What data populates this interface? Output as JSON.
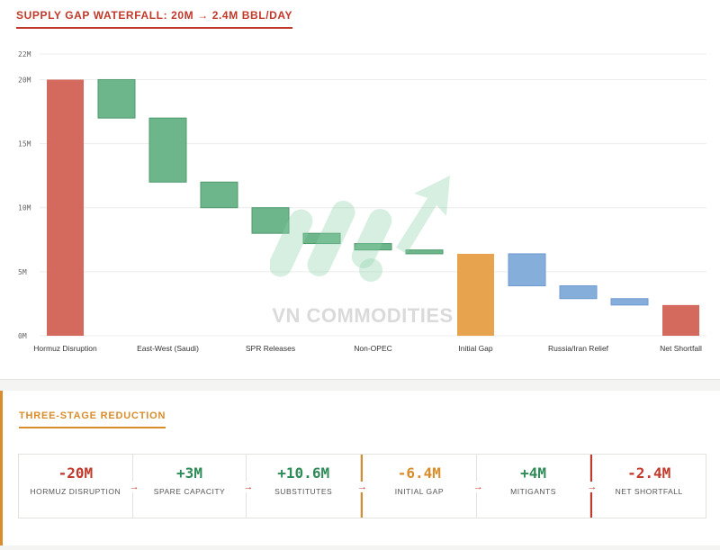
{
  "chart_title": "SUPPLY GAP WATERFALL: 20M → 2.4M BBL/DAY",
  "watermark": "VN COMMODITIES",
  "colors": {
    "red": "#c0392b",
    "red_bar": "#d46a5e",
    "green": "#6db58a",
    "green_line": "#4e9a6d",
    "orange": "#e8a34e",
    "blue": "#86aedb",
    "blue_line": "#6f9ad0",
    "orange_accent": "#d98c2b",
    "grid": "#ececec"
  },
  "chart_data": {
    "type": "bar",
    "subtype": "waterfall",
    "title": "SUPPLY GAP WATERFALL: 20M → 2.4M BBL/DAY",
    "ylim": [
      0,
      22
    ],
    "yticks": [
      0,
      5,
      10,
      15,
      20,
      22
    ],
    "ytick_labels": [
      "0M",
      "5M",
      "10M",
      "15M",
      "20M",
      "22M"
    ],
    "categories": [
      "Hormuz Disruption",
      "",
      "East-West (Saudi)",
      "",
      "SPR Releases",
      "",
      "Non-OPEC",
      "",
      "Initial Gap",
      "",
      "Russia/Iran Relief",
      "",
      "Net Shortfall"
    ],
    "bars": [
      {
        "low": 0,
        "high": 20,
        "kind": "red"
      },
      {
        "low": 17,
        "high": 20,
        "kind": "green"
      },
      {
        "low": 12,
        "high": 17,
        "kind": "green"
      },
      {
        "low": 10,
        "high": 12,
        "kind": "green"
      },
      {
        "low": 8,
        "high": 10,
        "kind": "green"
      },
      {
        "low": 7.2,
        "high": 8,
        "kind": "green"
      },
      {
        "low": 6.7,
        "high": 7.2,
        "kind": "green"
      },
      {
        "low": 6.4,
        "high": 6.7,
        "kind": "green"
      },
      {
        "low": 0,
        "high": 6.4,
        "kind": "orange"
      },
      {
        "low": 3.9,
        "high": 6.4,
        "kind": "blue"
      },
      {
        "low": 2.9,
        "high": 3.9,
        "kind": "blue"
      },
      {
        "low": 2.4,
        "high": 2.9,
        "kind": "blue"
      },
      {
        "low": 0,
        "high": 2.4,
        "kind": "red"
      }
    ]
  },
  "stages_title": "THREE-STAGE REDUCTION",
  "stages": [
    {
      "value": "-20M",
      "label": "HORMUZ DISRUPTION",
      "color": "#c0392b"
    },
    {
      "value": "+3M",
      "label": "SPARE CAPACITY",
      "color": "#2e8b57"
    },
    {
      "value": "+10.6M",
      "label": "SUBSTITUTES",
      "color": "#2e8b57"
    },
    {
      "value": "-6.4M",
      "label": "INITIAL GAP",
      "color": "#d98c2b"
    },
    {
      "value": "+4M",
      "label": "MITIGANTS",
      "color": "#2e8b57"
    },
    {
      "value": "-2.4M",
      "label": "NET SHORTFALL",
      "color": "#c0392b"
    }
  ],
  "arrow_glyph": "→"
}
